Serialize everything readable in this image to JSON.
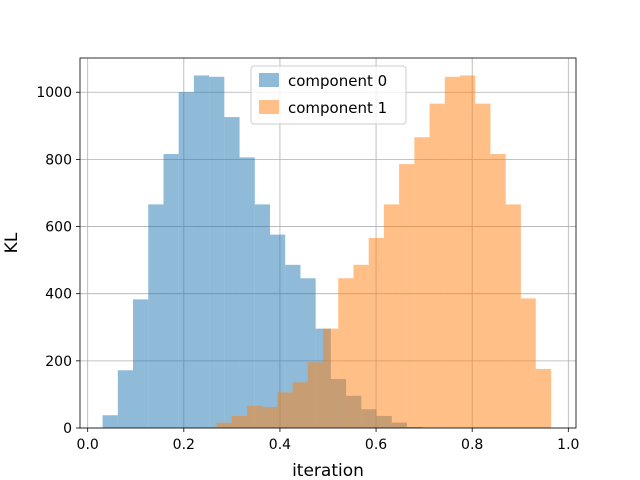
{
  "chart_data": {
    "type": "bar",
    "subtype": "overlapping-histogram",
    "xlabel": "iteration",
    "ylabel": "KL",
    "xlim": [
      -0.016,
      1.016
    ],
    "ylim": [
      0,
      1102
    ],
    "xticks": [
      "0.0",
      "0.2",
      "0.4",
      "0.6",
      "0.8",
      "1.0"
    ],
    "xtick_values": [
      0.0,
      0.2,
      0.4,
      0.6,
      0.8,
      1.0
    ],
    "yticks": [
      "0",
      "200",
      "400",
      "600",
      "800",
      "1000"
    ],
    "ytick_values": [
      0,
      200,
      400,
      600,
      800,
      1000
    ],
    "grid": true,
    "legend_position": "upper center",
    "series": [
      {
        "name": "component 0",
        "color": "#1f77b4",
        "opacity": 0.5,
        "bin_edges": [
          0.031,
          0.0627,
          0.0943,
          0.126,
          0.1577,
          0.1893,
          0.221,
          0.2527,
          0.2843,
          0.316,
          0.3477,
          0.3793,
          0.411,
          0.4427,
          0.4743,
          0.506,
          0.5377,
          0.5693,
          0.601,
          0.6327,
          0.6643,
          0.696
        ],
        "values": [
          38,
          172,
          383,
          666,
          816,
          1000,
          1050,
          1046,
          926,
          806,
          666,
          576,
          486,
          446,
          296,
          146,
          96,
          56,
          36,
          16,
          3
        ]
      },
      {
        "name": "component 1",
        "color": "#ff7f0e",
        "opacity": 0.5,
        "bin_edges": [
          0.268,
          0.2997,
          0.3313,
          0.363,
          0.3947,
          0.4263,
          0.458,
          0.4897,
          0.5213,
          0.553,
          0.5847,
          0.6163,
          0.648,
          0.6797,
          0.7113,
          0.743,
          0.7747,
          0.8063,
          0.838,
          0.8697,
          0.9013,
          0.9323,
          0.9643
        ],
        "values": [
          16,
          36,
          66,
          63,
          106,
          136,
          196,
          296,
          446,
          486,
          566,
          666,
          786,
          866,
          966,
          1046,
          1050,
          966,
          816,
          666,
          386,
          176,
          38
        ]
      }
    ]
  }
}
